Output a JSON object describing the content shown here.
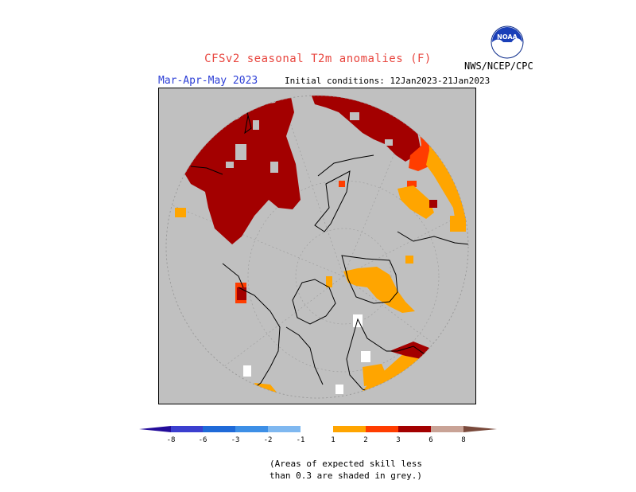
{
  "title": "CFSv2 seasonal T2m anomalies (F)",
  "season": "Mar-Apr-May 2023",
  "initial_conditions": "Initial conditions: 12Jan2023-21Jan2023",
  "agency": "NWS/NCEP/CPC",
  "logo_text": "NOAA",
  "colors": {
    "missing_grey": "#c0c0c0",
    "land_outline": "#000000",
    "cb_le_-8": "#230c9a",
    "cb_-8_-6": "#3b3fcf",
    "cb_-6_-3": "#1f6ad8",
    "cb_-3_-2": "#3d8fe6",
    "cb_-2_-1": "#7fb8f0",
    "cb_-1_1": "#ffffff",
    "cb_1_2": "#ffa500",
    "cb_2_3": "#ff3d00",
    "cb_3_6": "#a30000",
    "cb_6_8": "#c9a396",
    "cb_ge_8": "#7a4a3c"
  },
  "colorbar": {
    "ticks": [
      "-8",
      "-6",
      "-3",
      "-2",
      "-1",
      "1",
      "2",
      "3",
      "6",
      "8"
    ]
  },
  "note": {
    "line1": "(Areas of expected skill less",
    "line2": "than 0.3 are shaded in grey.)"
  }
}
